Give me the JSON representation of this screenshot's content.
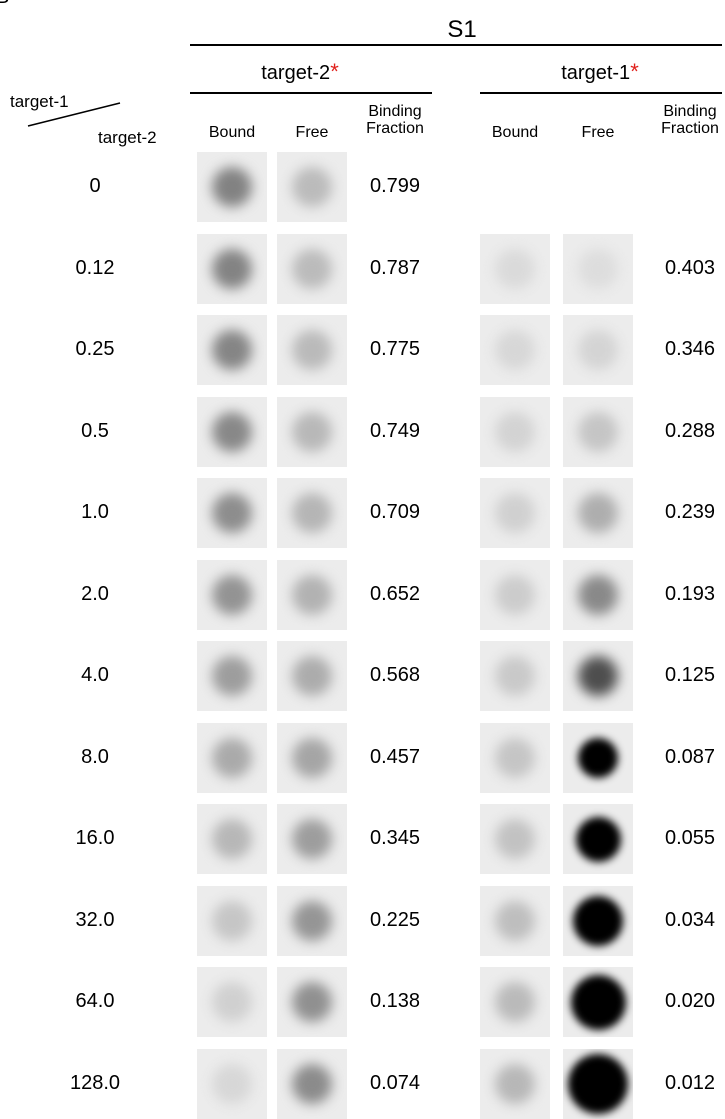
{
  "panel_label": "B",
  "header": "S1",
  "groups": [
    {
      "name": "target-2",
      "mark": "*"
    },
    {
      "name": "target-1",
      "mark": "*"
    }
  ],
  "corner": {
    "top": "target-1",
    "bottom": "target-2"
  },
  "columns": [
    "Bound",
    "Free",
    "Binding Fraction"
  ],
  "rows": [
    {
      "ratio": "0",
      "fractions": [
        "0.799",
        null
      ]
    },
    {
      "ratio": "0.12",
      "fractions": [
        "0.787",
        "0.403"
      ]
    },
    {
      "ratio": "0.25",
      "fractions": [
        "0.775",
        "0.346"
      ]
    },
    {
      "ratio": "0.5",
      "fractions": [
        "0.749",
        "0.288"
      ]
    },
    {
      "ratio": "1.0",
      "fractions": [
        "0.709",
        "0.239"
      ]
    },
    {
      "ratio": "2.0",
      "fractions": [
        "0.652",
        "0.193"
      ]
    },
    {
      "ratio": "4.0",
      "fractions": [
        "0.568",
        "0.125"
      ]
    },
    {
      "ratio": "8.0",
      "fractions": [
        "0.457",
        "0.087"
      ]
    },
    {
      "ratio": "16.0",
      "fractions": [
        "0.345",
        "0.055"
      ]
    },
    {
      "ratio": "32.0",
      "fractions": [
        "0.225",
        "0.034"
      ]
    },
    {
      "ratio": "64.0",
      "fractions": [
        "0.138",
        "0.020"
      ]
    },
    {
      "ratio": "128.0",
      "fractions": [
        "0.074",
        "0.012"
      ]
    }
  ]
}
